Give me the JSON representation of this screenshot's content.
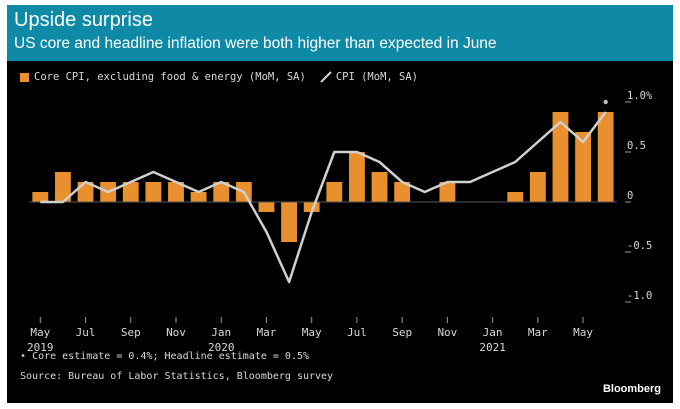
{
  "header": {
    "title": "Upside surprise",
    "subtitle": "US core and headline inflation were both higher than expected in June"
  },
  "chart_data": {
    "type": "bar",
    "categories": [
      "May 2019",
      "Jun 2019",
      "Jul 2019",
      "Aug 2019",
      "Sep 2019",
      "Oct 2019",
      "Nov 2019",
      "Dec 2019",
      "Jan 2020",
      "Feb 2020",
      "Mar 2020",
      "Apr 2020",
      "May 2020",
      "Jun 2020",
      "Jul 2020",
      "Aug 2020",
      "Sep 2020",
      "Oct 2020",
      "Nov 2020",
      "Dec 2020",
      "Jan 2021",
      "Feb 2021",
      "Mar 2021",
      "Apr 2021",
      "May 2021",
      "Jun 2021"
    ],
    "series": [
      {
        "name": "Core CPI, excluding food & energy (MoM, SA)",
        "kind": "bar",
        "color": "#e8902e",
        "values": [
          0.1,
          0.3,
          0.2,
          0.2,
          0.2,
          0.2,
          0.2,
          0.1,
          0.2,
          0.2,
          -0.1,
          -0.4,
          -0.1,
          0.2,
          0.5,
          0.3,
          0.2,
          0.0,
          0.2,
          0.0,
          0.0,
          0.1,
          0.3,
          0.9,
          0.7,
          0.9
        ]
      },
      {
        "name": "CPI (MoM, SA)",
        "kind": "line",
        "color": "#d0d0d0",
        "values": [
          0.0,
          0.0,
          0.2,
          0.1,
          0.2,
          0.3,
          0.2,
          0.1,
          0.2,
          0.1,
          -0.3,
          -0.8,
          -0.1,
          0.5,
          0.5,
          0.4,
          0.2,
          0.1,
          0.2,
          0.2,
          0.3,
          0.4,
          0.6,
          0.8,
          0.6,
          0.9
        ]
      }
    ],
    "estimates": {
      "core": 0.4,
      "headline": 0.5
    },
    "ylim": [
      -1.05,
      1.05
    ],
    "y_ticks": [
      {
        "value": 1.0,
        "label": "1.0%"
      },
      {
        "value": 0.5,
        "label": "0.5"
      },
      {
        "value": 0,
        "label": "0"
      },
      {
        "value": -0.5,
        "label": "-0.5"
      },
      {
        "value": -1.0,
        "label": "-1.0"
      }
    ],
    "x_ticks": [
      {
        "index": 0,
        "label": "May",
        "year": "2019"
      },
      {
        "index": 2,
        "label": "Jul",
        "year": ""
      },
      {
        "index": 4,
        "label": "Sep",
        "year": ""
      },
      {
        "index": 6,
        "label": "Nov",
        "year": ""
      },
      {
        "index": 8,
        "label": "Jan",
        "year": "2020"
      },
      {
        "index": 10,
        "label": "Mar",
        "year": ""
      },
      {
        "index": 12,
        "label": "May",
        "year": ""
      },
      {
        "index": 14,
        "label": "Jul",
        "year": ""
      },
      {
        "index": 16,
        "label": "Sep",
        "year": ""
      },
      {
        "index": 18,
        "label": "Nov",
        "year": ""
      },
      {
        "index": 20,
        "label": "Jan",
        "year": "2021"
      },
      {
        "index": 22,
        "label": "Mar",
        "year": ""
      },
      {
        "index": 24,
        "label": "May",
        "year": ""
      }
    ],
    "grid": false,
    "legend_position": "top-left"
  },
  "legend": {
    "core_label": "Core CPI, excluding food & energy (MoM, SA)",
    "cpi_label": "CPI (MoM, SA)"
  },
  "footnote": {
    "marker": "•",
    "text": "Core estimate = 0.4%; Headline estimate = 0.5%"
  },
  "source": "Source: Bureau of Labor Statistics, Bloomberg survey",
  "brand": "Bloomberg"
}
